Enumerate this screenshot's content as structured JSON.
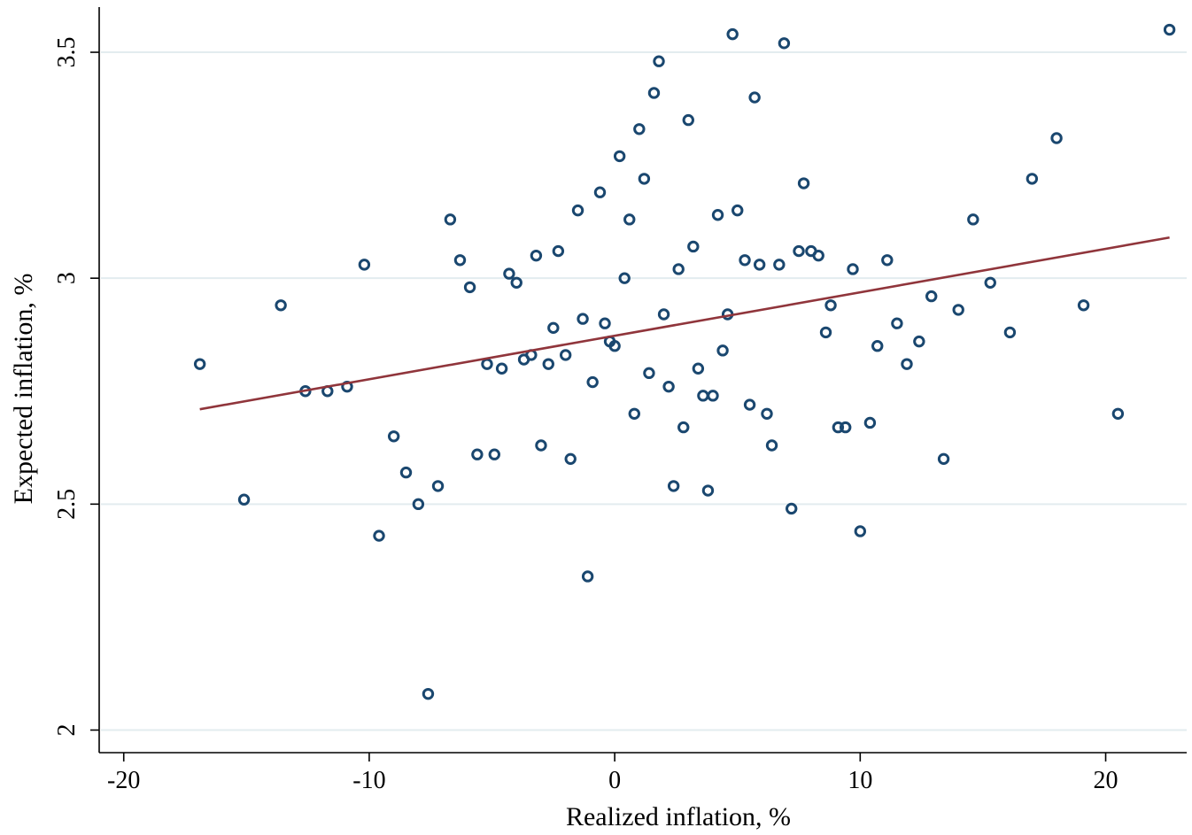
{
  "chart_data": {
    "type": "scatter",
    "xlabel": "Realized inflation, %",
    "ylabel": "Expected inflation, %",
    "xlim": [
      -21,
      23.3
    ],
    "ylim": [
      1.95,
      3.6
    ],
    "xticks": [
      -20,
      -10,
      0,
      10,
      20
    ],
    "yticks": [
      2,
      2.5,
      3,
      3.5
    ],
    "xtick_labels": [
      "-20",
      "-10",
      "0",
      "10",
      "20"
    ],
    "ytick_labels": [
      "2",
      "2.5",
      "3",
      "3.5"
    ],
    "grid": "horizontal",
    "colors": {
      "points": "#1a476f",
      "fit": "#90353b",
      "grid": "#e3ecef"
    },
    "series": [
      {
        "type": "scatter",
        "points": [
          [
            -16.9,
            2.81
          ],
          [
            -15.1,
            2.51
          ],
          [
            -13.6,
            2.94
          ],
          [
            -12.6,
            2.75
          ],
          [
            -11.7,
            2.75
          ],
          [
            -10.9,
            2.76
          ],
          [
            -10.2,
            3.03
          ],
          [
            -9.6,
            2.43
          ],
          [
            -9.0,
            2.65
          ],
          [
            -8.5,
            2.57
          ],
          [
            -8.0,
            2.5
          ],
          [
            -7.6,
            2.08
          ],
          [
            -7.2,
            2.54
          ],
          [
            -6.7,
            3.13
          ],
          [
            -6.3,
            3.04
          ],
          [
            -5.9,
            2.98
          ],
          [
            -5.6,
            2.61
          ],
          [
            -5.2,
            2.81
          ],
          [
            -4.9,
            2.61
          ],
          [
            -4.6,
            2.8
          ],
          [
            -4.3,
            3.01
          ],
          [
            -4.0,
            2.99
          ],
          [
            -3.7,
            2.82
          ],
          [
            -3.4,
            2.83
          ],
          [
            -3.2,
            3.05
          ],
          [
            -3.0,
            2.63
          ],
          [
            -2.7,
            2.81
          ],
          [
            -2.5,
            2.89
          ],
          [
            -2.3,
            3.06
          ],
          [
            -2.0,
            2.83
          ],
          [
            -1.8,
            2.6
          ],
          [
            -1.5,
            3.15
          ],
          [
            -1.3,
            2.91
          ],
          [
            -1.1,
            2.34
          ],
          [
            -0.9,
            2.77
          ],
          [
            -0.6,
            3.19
          ],
          [
            -0.4,
            2.9
          ],
          [
            -0.2,
            2.86
          ],
          [
            0.0,
            2.85
          ],
          [
            0.2,
            3.27
          ],
          [
            0.4,
            3.0
          ],
          [
            0.6,
            3.13
          ],
          [
            0.8,
            2.7
          ],
          [
            1.0,
            3.33
          ],
          [
            1.2,
            3.22
          ],
          [
            1.4,
            2.79
          ],
          [
            1.6,
            3.41
          ],
          [
            1.8,
            3.48
          ],
          [
            2.0,
            2.92
          ],
          [
            2.2,
            2.76
          ],
          [
            2.4,
            2.54
          ],
          [
            2.6,
            3.02
          ],
          [
            2.8,
            2.67
          ],
          [
            3.0,
            3.35
          ],
          [
            3.2,
            3.07
          ],
          [
            3.4,
            2.8
          ],
          [
            3.6,
            2.74
          ],
          [
            3.8,
            2.53
          ],
          [
            4.0,
            2.74
          ],
          [
            4.2,
            3.14
          ],
          [
            4.4,
            2.84
          ],
          [
            4.6,
            2.92
          ],
          [
            4.8,
            3.54
          ],
          [
            5.0,
            3.15
          ],
          [
            5.3,
            3.04
          ],
          [
            5.5,
            2.72
          ],
          [
            5.7,
            3.4
          ],
          [
            5.9,
            3.03
          ],
          [
            6.2,
            2.7
          ],
          [
            6.4,
            2.63
          ],
          [
            6.7,
            3.03
          ],
          [
            6.9,
            3.52
          ],
          [
            7.2,
            2.49
          ],
          [
            7.5,
            3.06
          ],
          [
            7.7,
            3.21
          ],
          [
            8.0,
            3.06
          ],
          [
            8.3,
            3.05
          ],
          [
            8.6,
            2.88
          ],
          [
            8.8,
            2.94
          ],
          [
            9.1,
            2.67
          ],
          [
            9.4,
            2.67
          ],
          [
            9.7,
            3.02
          ],
          [
            10.0,
            2.44
          ],
          [
            10.4,
            2.68
          ],
          [
            10.7,
            2.85
          ],
          [
            11.1,
            3.04
          ],
          [
            11.5,
            2.9
          ],
          [
            11.9,
            2.81
          ],
          [
            12.4,
            2.86
          ],
          [
            12.9,
            2.96
          ],
          [
            13.4,
            2.6
          ],
          [
            14.0,
            2.93
          ],
          [
            14.6,
            3.13
          ],
          [
            15.3,
            2.99
          ],
          [
            16.1,
            2.88
          ],
          [
            17.0,
            3.22
          ],
          [
            18.0,
            3.31
          ],
          [
            19.1,
            2.94
          ],
          [
            20.5,
            2.7
          ],
          [
            22.6,
            3.55
          ]
        ]
      },
      {
        "type": "line",
        "points": [
          [
            -16.9,
            2.71
          ],
          [
            22.6,
            3.09
          ]
        ]
      }
    ]
  }
}
